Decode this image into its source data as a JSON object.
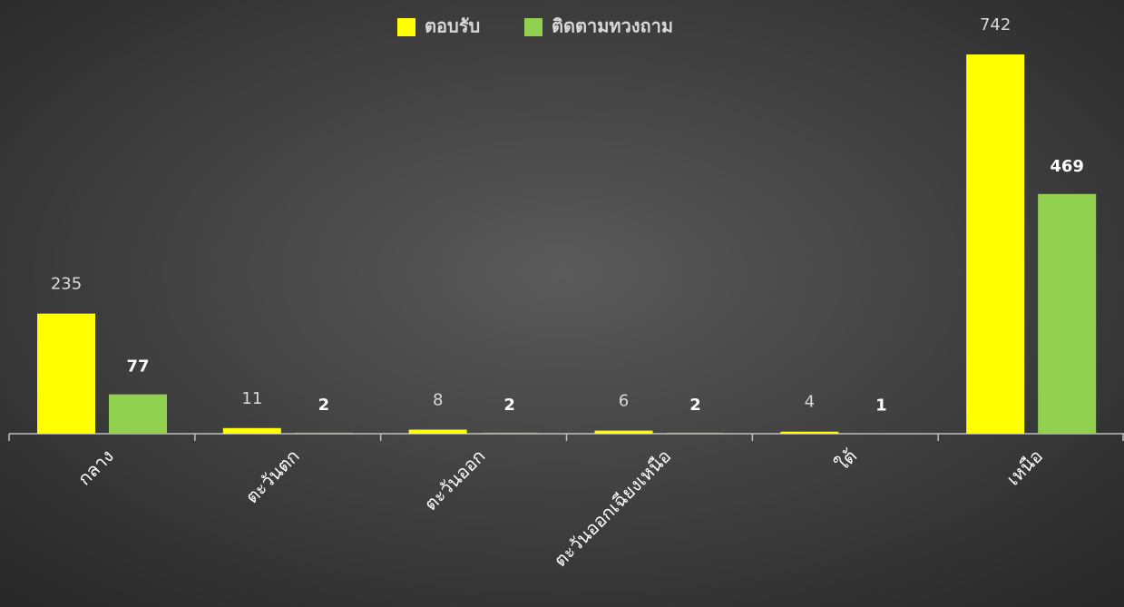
{
  "chart_data": {
    "type": "bar",
    "categories": [
      "กลาง",
      "ตะวันตก",
      "ตะวันออก",
      "ตะวันออกเฉียงเหนือ",
      "ใต้",
      "เหนือ"
    ],
    "series": [
      {
        "name": "ตอบรับ",
        "color": "#ffff00",
        "values": [
          235,
          11,
          8,
          6,
          4,
          742
        ]
      },
      {
        "name": "ติดตามทวงถาม",
        "color": "#92d050",
        "values": [
          77,
          2,
          2,
          2,
          1,
          469
        ]
      }
    ],
    "legend": "top"
  }
}
